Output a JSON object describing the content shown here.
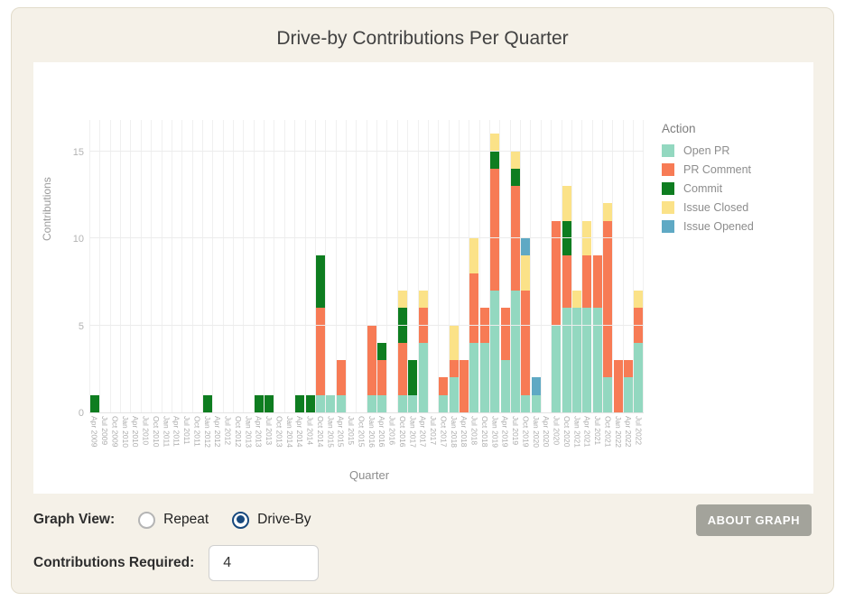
{
  "title": "Drive-by Contributions Per Quarter",
  "colors": {
    "card_background": "#f5f1e8",
    "panel_background": "#ffffff",
    "open_pr": "#93d8c0",
    "pr_comment": "#f77b55",
    "commit": "#0e7d20",
    "issue_closed": "#fbe288",
    "issue_opened": "#5fa9c4",
    "radio_selected": "#17497e",
    "about_button": "#a3a39b"
  },
  "chart_data": {
    "type": "bar",
    "stacked": true,
    "title": "Drive-by Contributions Per Quarter",
    "xlabel": "Quarter",
    "ylabel": "Contributions",
    "y_ticks": [
      0,
      5,
      10,
      15
    ],
    "ylim": [
      0,
      16.8
    ],
    "grid": true,
    "legend_title": "Action",
    "legend_position": "right",
    "categories": [
      "Apr 2009",
      "Jul 2009",
      "Oct 2009",
      "Jan 2010",
      "Apr 2010",
      "Jul 2010",
      "Oct 2010",
      "Jan 2011",
      "Apr 2011",
      "Jul 2011",
      "Oct 2011",
      "Jan 2012",
      "Apr 2012",
      "Jul 2012",
      "Oct 2012",
      "Jan 2013",
      "Apr 2013",
      "Jul 2013",
      "Oct 2013",
      "Jan 2014",
      "Apr 2014",
      "Jul 2014",
      "Oct 2014",
      "Jan 2015",
      "Apr 2015",
      "Jul 2015",
      "Oct 2015",
      "Jan 2016",
      "Apr 2016",
      "Jul 2016",
      "Oct 2016",
      "Jan 2017",
      "Apr 2017",
      "Jul 2017",
      "Oct 2017",
      "Jan 2018",
      "Apr 2018",
      "Jul 2018",
      "Oct 2018",
      "Jan 2019",
      "Apr 2019",
      "Jul 2019",
      "Oct 2019",
      "Jan 2020",
      "Apr 2020",
      "Jul 2020",
      "Oct 2020",
      "Jan 2021",
      "Apr 2021",
      "Jul 2021",
      "Oct 2021",
      "Jan 2022",
      "Apr 2022",
      "Jul 2022"
    ],
    "series": [
      {
        "name": "Open PR",
        "color": "#93d8c0",
        "values": [
          0,
          0,
          0,
          0,
          0,
          0,
          0,
          0,
          0,
          0,
          0,
          0,
          0,
          0,
          0,
          0,
          0,
          0,
          0,
          0,
          0,
          0,
          1,
          1,
          1,
          0,
          0,
          1,
          1,
          0,
          1,
          1,
          4,
          0,
          1,
          2,
          0,
          4,
          4,
          7,
          3,
          7,
          1,
          1,
          0,
          5,
          6,
          6,
          6,
          6,
          2,
          0,
          2,
          4
        ]
      },
      {
        "name": "PR Comment",
        "color": "#f77b55",
        "values": [
          0,
          0,
          0,
          0,
          0,
          0,
          0,
          0,
          0,
          0,
          0,
          0,
          0,
          0,
          0,
          0,
          0,
          0,
          0,
          0,
          0,
          0,
          5,
          0,
          2,
          0,
          0,
          4,
          2,
          0,
          3,
          0,
          2,
          0,
          1,
          1,
          3,
          4,
          2,
          7,
          3,
          6,
          6,
          0,
          0,
          6,
          3,
          0,
          3,
          3,
          9,
          3,
          1,
          2
        ]
      },
      {
        "name": "Commit",
        "color": "#0e7d20",
        "values": [
          1,
          0,
          0,
          0,
          0,
          0,
          0,
          0,
          0,
          0,
          0,
          1,
          0,
          0,
          0,
          0,
          1,
          1,
          0,
          0,
          1,
          1,
          3,
          0,
          0,
          0,
          0,
          0,
          1,
          0,
          2,
          2,
          0,
          0,
          0,
          0,
          0,
          0,
          0,
          1,
          0,
          1,
          0,
          0,
          0,
          0,
          2,
          0,
          0,
          0,
          0,
          0,
          0,
          0
        ]
      },
      {
        "name": "Issue Closed",
        "color": "#fbe288",
        "values": [
          0,
          0,
          0,
          0,
          0,
          0,
          0,
          0,
          0,
          0,
          0,
          0,
          0,
          0,
          0,
          0,
          0,
          0,
          0,
          0,
          0,
          0,
          0,
          0,
          0,
          0,
          0,
          0,
          0,
          0,
          1,
          0,
          1,
          0,
          0,
          2,
          0,
          2,
          0,
          1,
          0,
          1,
          2,
          0,
          0,
          0,
          2,
          1,
          2,
          0,
          1,
          0,
          0,
          1
        ]
      },
      {
        "name": "Issue Opened",
        "color": "#5fa9c4",
        "values": [
          0,
          0,
          0,
          0,
          0,
          0,
          0,
          0,
          0,
          0,
          0,
          0,
          0,
          0,
          0,
          0,
          0,
          0,
          0,
          0,
          0,
          0,
          0,
          0,
          0,
          0,
          0,
          0,
          0,
          0,
          0,
          0,
          0,
          0,
          0,
          0,
          0,
          0,
          0,
          0,
          0,
          0,
          1,
          1,
          0,
          0,
          0,
          0,
          0,
          0,
          0,
          0,
          0,
          0
        ]
      }
    ]
  },
  "controls": {
    "graph_view_label": "Graph View:",
    "radio_repeat_label": "Repeat",
    "radio_driveby_label": "Drive-By",
    "selected_view": "Drive-By",
    "about_button_label": "ABOUT GRAPH",
    "contributions_label": "Contributions Required:",
    "contributions_value": "4"
  }
}
